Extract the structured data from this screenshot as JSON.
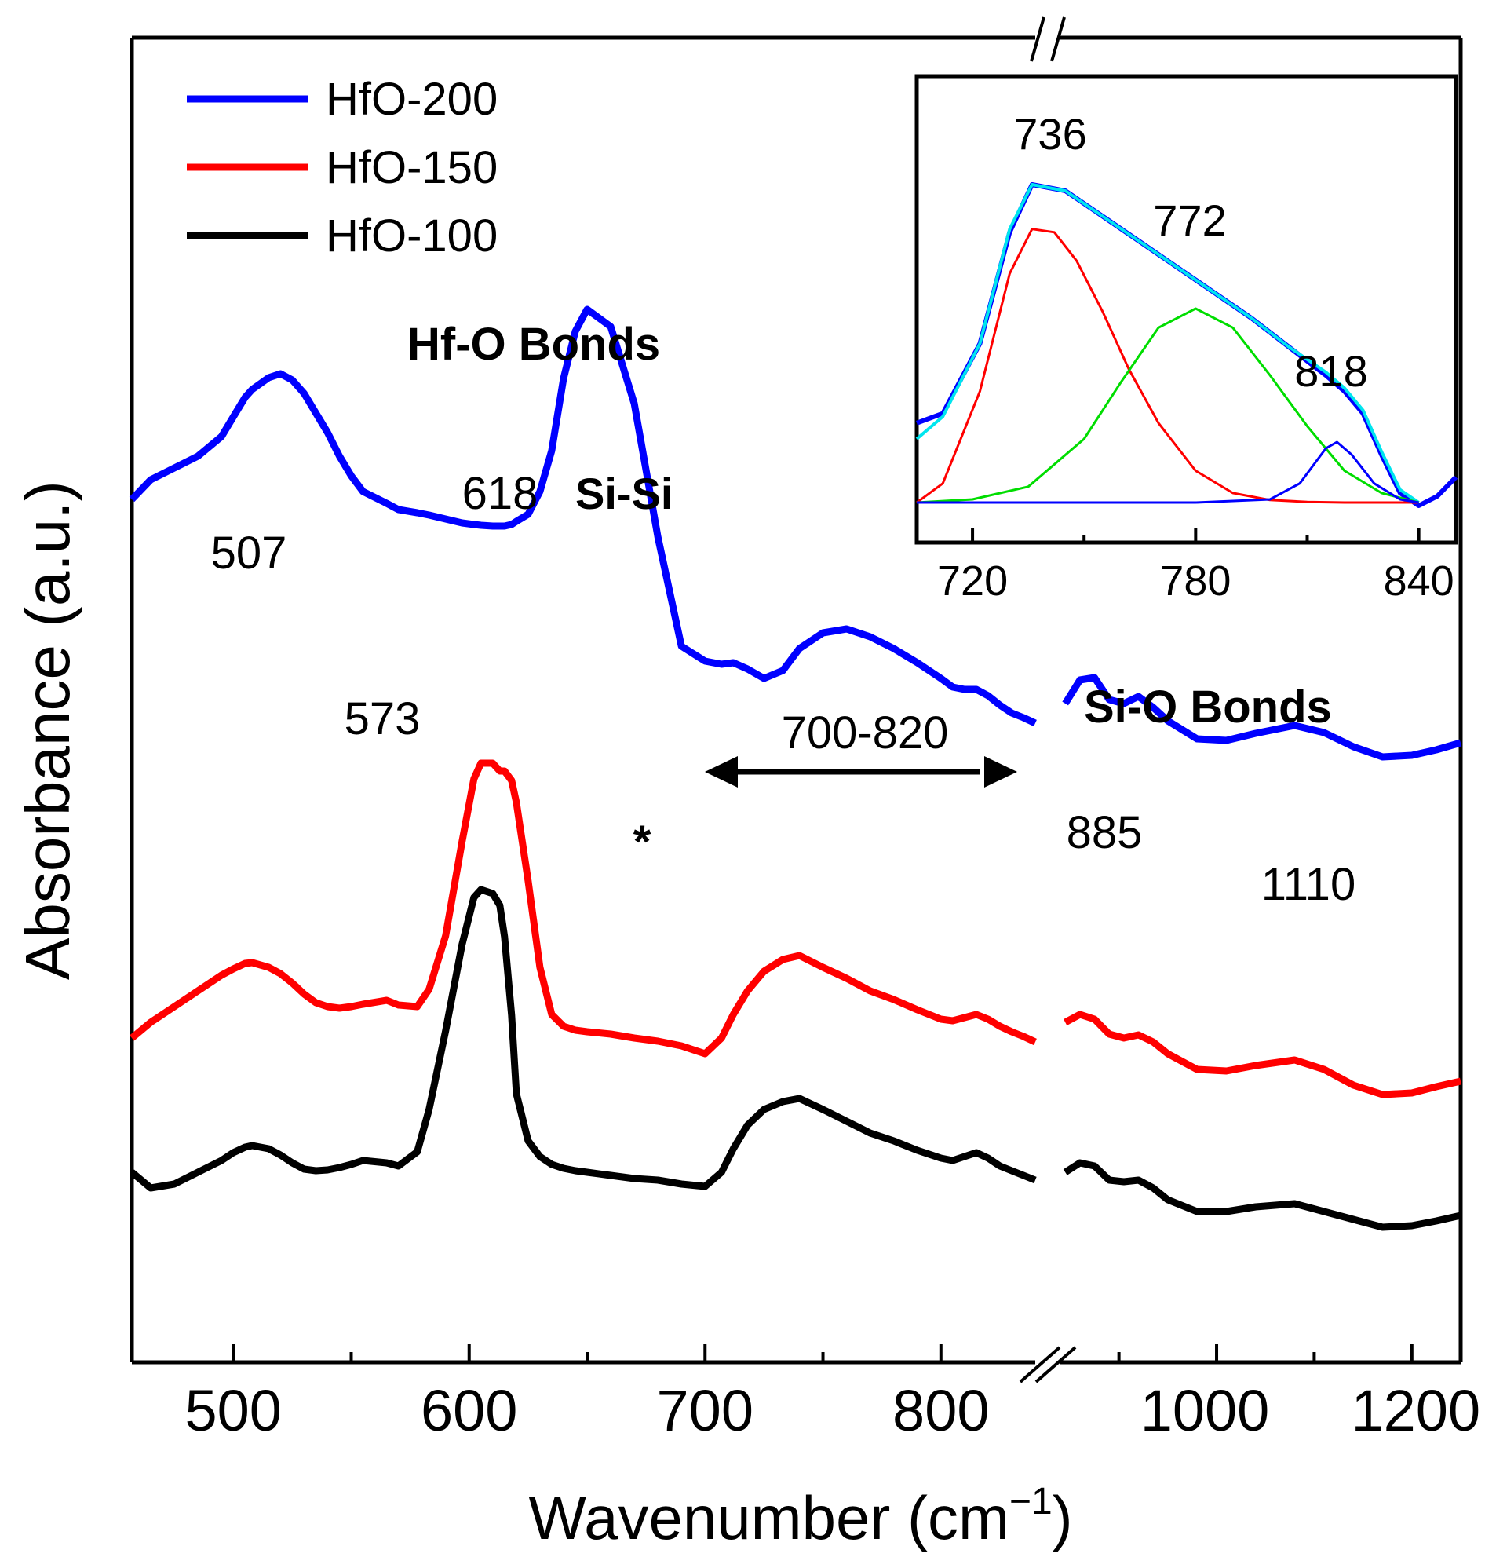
{
  "chart_data": [
    {
      "type": "line",
      "title": "",
      "xlabel": "Wavenumber (cm",
      "xlabel_sup": "−1",
      "xlabel_close": ")",
      "ylabel": "Absorbance (a.u.)",
      "x_axis_break": "after 840 cm-1",
      "grid": false,
      "legend_position": "top-left",
      "xticks_left": [
        "500",
        "600",
        "700",
        "800"
      ],
      "xticks_right": [
        "1000",
        "1200"
      ],
      "xlim_left": [
        457,
        840
      ],
      "xlim_right": [
        840,
        1250
      ],
      "series": [
        {
          "name": "HfO-200",
          "color": "#0000ff",
          "left_segment": {
            "x": [
              457,
              465,
              475,
              485,
              495,
              500,
              505,
              508,
              515,
              520,
              525,
              530,
              535,
              540,
              545,
              550,
              555,
              565,
              570,
              578,
              583,
              590,
              597,
              602,
              605,
              610,
              613,
              615,
              618,
              620,
              625,
              630,
              635,
              640,
              645,
              650,
              660,
              670,
              680,
              690,
              700,
              707,
              712,
              718,
              725,
              733,
              740,
              750,
              760,
              770,
              780,
              790,
              800,
              805,
              810,
              815,
              820,
              825,
              830,
              835,
              840
            ],
            "y": [
              0.56,
              0.585,
              0.6,
              0.615,
              0.64,
              0.665,
              0.69,
              0.7,
              0.715,
              0.72,
              0.712,
              0.695,
              0.67,
              0.645,
              0.615,
              0.59,
              0.57,
              0.555,
              0.547,
              0.543,
              0.54,
              0.535,
              0.53,
              0.528,
              0.527,
              0.526,
              0.526,
              0.526,
              0.528,
              0.532,
              0.541,
              0.57,
              0.622,
              0.714,
              0.774,
              0.802,
              0.78,
              0.682,
              0.512,
              0.373,
              0.354,
              0.35,
              0.352,
              0.344,
              0.332,
              0.342,
              0.37,
              0.39,
              0.395,
              0.385,
              0.37,
              0.352,
              0.332,
              0.321,
              0.318,
              0.318,
              0.31,
              0.298,
              0.288,
              0.282,
              0.275
            ],
            "note_x_unit": "cm-1"
          },
          "right_segment": {
            "x": [
              845,
              860,
              875,
              890,
              905,
              920,
              935,
              950,
              980,
              1010,
              1040,
              1080,
              1110,
              1140,
              1170,
              1200,
              1225,
              1250
            ],
            "y": [
              0.3,
              0.33,
              0.333,
              0.305,
              0.3,
              0.309,
              0.295,
              0.278,
              0.255,
              0.253,
              0.262,
              0.272,
              0.263,
              0.245,
              0.232,
              0.234,
              0.241,
              0.25
            ],
            "note_x_unit": "cm-1"
          }
        },
        {
          "name": "HfO-150",
          "color": "#ff0000",
          "left_segment": {
            "x": [
              457,
              465,
              475,
              485,
              495,
              500,
              505,
              508,
              515,
              520,
              525,
              530,
              535,
              540,
              545,
              550,
              555,
              565,
              570,
              578,
              583,
              590,
              597,
              602,
              605,
              610,
              613,
              615,
              618,
              620,
              625,
              630,
              635,
              640,
              645,
              650,
              660,
              670,
              680,
              690,
              700,
              707,
              712,
              718,
              725,
              733,
              740,
              750,
              760,
              770,
              780,
              790,
              800,
              805,
              810,
              815,
              820,
              825,
              830,
              835,
              840
            ],
            "y": [
              0.0,
              0.02,
              0.04,
              0.06,
              0.08,
              0.088,
              0.095,
              0.096,
              0.09,
              0.082,
              0.07,
              0.056,
              0.045,
              0.04,
              0.038,
              0.04,
              0.043,
              0.048,
              0.042,
              0.04,
              0.062,
              0.13,
              0.25,
              0.33,
              0.35,
              0.35,
              0.34,
              0.34,
              0.328,
              0.3,
              0.2,
              0.09,
              0.03,
              0.015,
              0.01,
              0.008,
              0.005,
              0.0,
              -0.004,
              -0.01,
              -0.02,
              0.0,
              0.03,
              0.06,
              0.085,
              0.1,
              0.105,
              0.09,
              0.076,
              0.06,
              0.049,
              0.036,
              0.024,
              0.022,
              0.026,
              0.03,
              0.024,
              0.015,
              0.008,
              0.002,
              -0.005
            ],
            "note_x_unit": "cm-1"
          },
          "right_segment": {
            "x": [
              845,
              860,
              875,
              890,
              905,
              920,
              935,
              950,
              980,
              1010,
              1040,
              1080,
              1110,
              1140,
              1170,
              1200,
              1225,
              1250
            ],
            "y": [
              0.02,
              0.03,
              0.024,
              0.005,
              0.0,
              0.004,
              -0.005,
              -0.02,
              -0.04,
              -0.042,
              -0.035,
              -0.028,
              -0.04,
              -0.06,
              -0.072,
              -0.07,
              -0.062,
              -0.055
            ],
            "note_x_unit": "cm-1"
          }
        },
        {
          "name": "HfO-100",
          "color": "#000000",
          "left_segment": {
            "x": [
              457,
              465,
              475,
              485,
              495,
              500,
              505,
              508,
              515,
              520,
              525,
              530,
              535,
              540,
              545,
              550,
              555,
              565,
              570,
              578,
              583,
              590,
              597,
              602,
              605,
              610,
              613,
              615,
              618,
              620,
              625,
              630,
              635,
              640,
              645,
              650,
              660,
              670,
              680,
              690,
              700,
              707,
              712,
              718,
              725,
              733,
              740,
              750,
              760,
              770,
              780,
              790,
              800,
              805,
              810,
              815,
              820,
              825,
              830,
              835,
              840
            ],
            "y": [
              0.0,
              -0.02,
              -0.015,
              0.0,
              0.015,
              0.025,
              0.032,
              0.034,
              0.03,
              0.022,
              0.012,
              0.004,
              0.002,
              0.003,
              0.006,
              0.01,
              0.015,
              0.012,
              0.008,
              0.026,
              0.08,
              0.18,
              0.29,
              0.35,
              0.36,
              0.355,
              0.34,
              0.3,
              0.2,
              0.1,
              0.04,
              0.02,
              0.01,
              0.005,
              0.002,
              0.0,
              -0.004,
              -0.008,
              -0.01,
              -0.015,
              -0.018,
              0.0,
              0.03,
              0.06,
              0.08,
              0.09,
              0.094,
              0.08,
              0.065,
              0.05,
              0.04,
              0.028,
              0.018,
              0.015,
              0.02,
              0.025,
              0.018,
              0.008,
              0.002,
              -0.004,
              -0.01
            ],
            "note_x_unit": "cm-1"
          },
          "right_segment": {
            "x": [
              845,
              860,
              875,
              890,
              905,
              920,
              935,
              950,
              980,
              1010,
              1040,
              1080,
              1110,
              1140,
              1170,
              1200,
              1225,
              1250
            ],
            "y": [
              0.0,
              0.012,
              0.008,
              -0.01,
              -0.012,
              -0.01,
              -0.02,
              -0.035,
              -0.05,
              -0.05,
              -0.044,
              -0.04,
              -0.05,
              -0.06,
              -0.07,
              -0.068,
              -0.062,
              -0.055
            ],
            "note_x_unit": "cm-1"
          }
        }
      ],
      "annotations": [
        {
          "text": "507",
          "x": 507
        },
        {
          "text": "573",
          "x": 573
        },
        {
          "text": "618",
          "x": 618
        },
        {
          "text": "Si-Si",
          "bold": true,
          "x": 618
        },
        {
          "text": "Hf-O Bonds",
          "bold": true
        },
        {
          "text": "*",
          "x": 670
        },
        {
          "text": "700-820",
          "x": [
            700,
            820
          ],
          "arrow": "double-headed"
        },
        {
          "text": "Si-O Bonds",
          "bold": true
        },
        {
          "text": "885",
          "x": 885
        },
        {
          "text": "1110",
          "x": 1110
        }
      ]
    },
    {
      "type": "line",
      "title": "inset",
      "xlabel": "",
      "ylabel": "",
      "xlim": [
        705,
        850
      ],
      "xticks": [
        "720",
        "780",
        "840"
      ],
      "grid": false,
      "series": [
        {
          "color": "#0000ff",
          "x": [
            705,
            712,
            722,
            730,
            736,
            745,
            755,
            765,
            775,
            785,
            795,
            805,
            815,
            820,
            825,
            830,
            835,
            840,
            845,
            850
          ],
          "y": [
            0.25,
            0.28,
            0.5,
            0.85,
            1.0,
            0.98,
            0.9,
            0.82,
            0.74,
            0.66,
            0.58,
            0.49,
            0.4,
            0.35,
            0.28,
            0.15,
            0.03,
            -0.01,
            0.02,
            0.08
          ]
        },
        {
          "color": "#00e5ee",
          "x": [
            705,
            712,
            722,
            730,
            736,
            745,
            755,
            765,
            775,
            785,
            795,
            805,
            815,
            820,
            825,
            830,
            835,
            840
          ],
          "y": [
            0.2,
            0.27,
            0.5,
            0.86,
            1.0,
            0.98,
            0.9,
            0.82,
            0.74,
            0.66,
            0.58,
            0.49,
            0.41,
            0.36,
            0.29,
            0.16,
            0.04,
            0.0
          ]
        },
        {
          "color": "#ff0000",
          "x": [
            705,
            712,
            722,
            730,
            736,
            742,
            748,
            755,
            762,
            770,
            780,
            790,
            800,
            810,
            820,
            830,
            840
          ],
          "y": [
            0.0,
            0.06,
            0.35,
            0.72,
            0.86,
            0.85,
            0.76,
            0.6,
            0.42,
            0.25,
            0.1,
            0.03,
            0.008,
            0.002,
            0.0,
            0.0,
            0.0
          ]
        },
        {
          "color": "#00dd00",
          "x": [
            705,
            720,
            735,
            750,
            760,
            770,
            780,
            790,
            800,
            810,
            820,
            830,
            840
          ],
          "y": [
            0.0,
            0.01,
            0.05,
            0.2,
            0.38,
            0.55,
            0.61,
            0.55,
            0.4,
            0.24,
            0.1,
            0.03,
            0.0
          ]
        },
        {
          "color": "#0000ff",
          "x": [
            705,
            780,
            800,
            808,
            815,
            818,
            822,
            828,
            835,
            840
          ],
          "y": [
            0.0,
            0.0,
            0.01,
            0.06,
            0.17,
            0.19,
            0.15,
            0.06,
            0.01,
            0.0
          ]
        }
      ],
      "annotations": [
        {
          "text": "736",
          "x": 736
        },
        {
          "text": "772",
          "x": 772
        },
        {
          "text": "818",
          "x": 818
        }
      ]
    }
  ]
}
